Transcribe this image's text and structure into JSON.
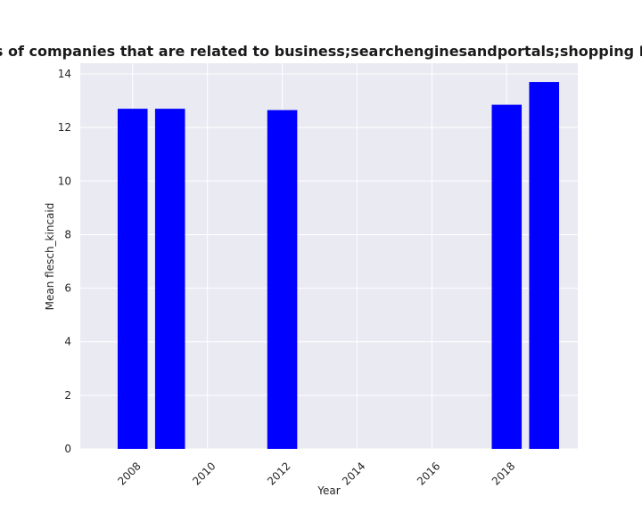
{
  "chart_data": {
    "type": "bar",
    "title": "Mean flesch_kincaid in privacy policies of companies that are related to business;searchenginesandportals;shopping Mean flesch_kincaid in privacy policies",
    "xlabel": "Year",
    "ylabel": "Mean flesch_kincaid",
    "x": [
      2008,
      2009,
      2012,
      2018,
      2019
    ],
    "values": [
      12.7,
      12.7,
      12.65,
      12.85,
      13.7
    ],
    "xlim": [
      2006.6,
      2019.9
    ],
    "ylim": [
      0,
      14.4
    ],
    "xticks": [
      2008,
      2010,
      2012,
      2014,
      2016,
      2018
    ],
    "yticks": [
      0,
      2,
      4,
      6,
      8,
      10,
      12,
      14
    ],
    "bar_width_years": 0.8,
    "grid": true,
    "colors": {
      "bar": "#0000ff",
      "plot_background": "#eaeaf2",
      "grid": "#ffffff"
    }
  }
}
